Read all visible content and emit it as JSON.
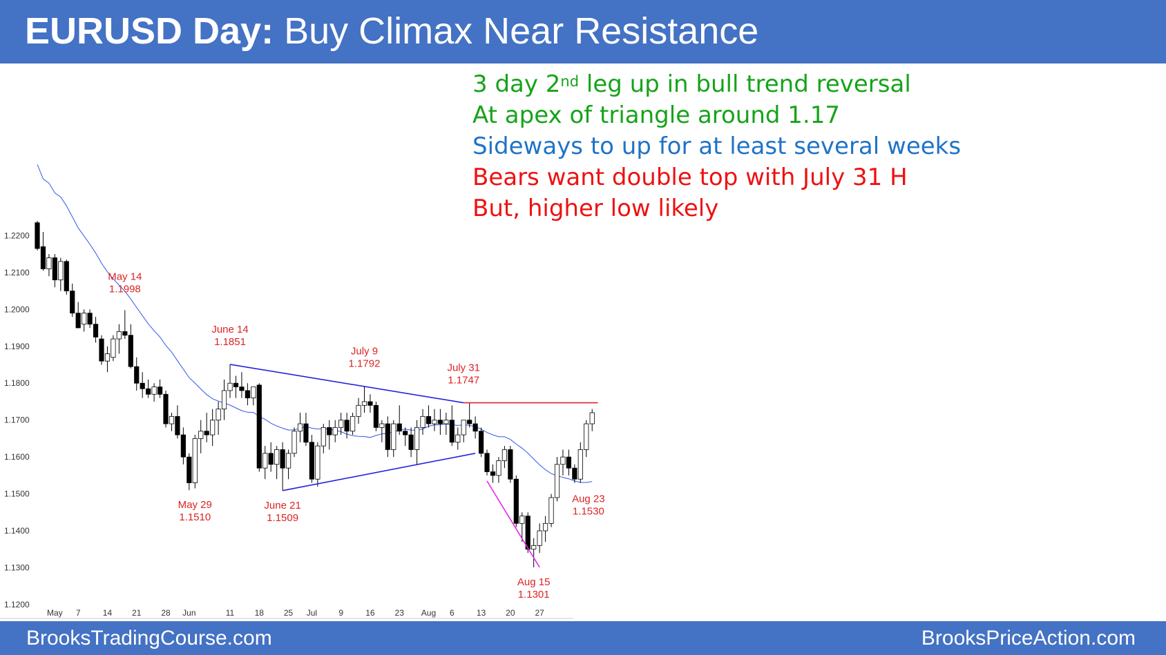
{
  "header": {
    "title_bold": "EURUSD Day:",
    "title_rest": " Buy Climax Near Resistance"
  },
  "notes": [
    {
      "text": "3 day 2",
      "sup": "nd",
      "after": " leg up in bull trend reversal",
      "color": "#16a31a"
    },
    {
      "text": "At apex of triangle around 1.17",
      "color": "#16a31a"
    },
    {
      "text": "Sideways to up for at least several weeks",
      "color": "#1f73c7"
    },
    {
      "text": "Bears want double top with July 31 H",
      "color": "#ee1111"
    },
    {
      "text": "But, higher low likely",
      "color": "#ee1111"
    }
  ],
  "footer": {
    "left": "BrooksTradingCourse.com",
    "right": "BrooksPriceAction.com"
  },
  "chart_data": {
    "type": "candlestick",
    "ylim": [
      1.117,
      1.224
    ],
    "y_ticks": [
      "1.2200",
      "1.2100",
      "1.2000",
      "1.1900",
      "1.1800",
      "1.1700",
      "1.1600",
      "1.1500",
      "1.1400",
      "1.1300",
      "1.1200"
    ],
    "x_ticks": [
      "May",
      "7",
      "14",
      "21",
      "28",
      "Jun",
      "11",
      "18",
      "25",
      "Jul",
      "9",
      "16",
      "23",
      "Aug",
      "6",
      "13",
      "20",
      "27"
    ],
    "candles": [
      [
        1.2235,
        1.224,
        1.216,
        1.2165
      ],
      [
        1.217,
        1.221,
        1.2105,
        1.211
      ],
      [
        1.211,
        1.215,
        1.209,
        1.214
      ],
      [
        1.214,
        1.215,
        1.206,
        1.208
      ],
      [
        1.208,
        1.214,
        1.205,
        1.213
      ],
      [
        1.213,
        1.2135,
        1.204,
        1.205
      ],
      [
        1.205,
        1.207,
        1.198,
        1.199
      ],
      [
        1.199,
        1.202,
        1.195,
        1.195
      ],
      [
        1.196,
        1.2,
        1.194,
        1.199
      ],
      [
        1.199,
        1.2,
        1.195,
        1.196
      ],
      [
        1.196,
        1.198,
        1.191,
        1.1925
      ],
      [
        1.192,
        1.193,
        1.185,
        1.186
      ],
      [
        1.186,
        1.19,
        1.183,
        1.188
      ],
      [
        1.187,
        1.193,
        1.186,
        1.192
      ],
      [
        1.192,
        1.196,
        1.188,
        1.194
      ],
      [
        1.194,
        1.1998,
        1.192,
        1.193
      ],
      [
        1.193,
        1.196,
        1.184,
        1.1845
      ],
      [
        1.1845,
        1.187,
        1.178,
        1.18
      ],
      [
        1.18,
        1.183,
        1.176,
        1.1785
      ],
      [
        1.1785,
        1.181,
        1.176,
        1.177
      ],
      [
        1.177,
        1.18,
        1.175,
        1.179
      ],
      [
        1.179,
        1.181,
        1.176,
        1.177
      ],
      [
        1.177,
        1.178,
        1.168,
        1.169
      ],
      [
        1.169,
        1.172,
        1.167,
        1.171
      ],
      [
        1.171,
        1.174,
        1.165,
        1.166
      ],
      [
        1.166,
        1.168,
        1.158,
        1.16
      ],
      [
        1.16,
        1.161,
        1.151,
        1.153
      ],
      [
        1.153,
        1.166,
        1.1515,
        1.165
      ],
      [
        1.165,
        1.17,
        1.161,
        1.167
      ],
      [
        1.167,
        1.172,
        1.164,
        1.166
      ],
      [
        1.166,
        1.173,
        1.163,
        1.17
      ],
      [
        1.17,
        1.175,
        1.166,
        1.173
      ],
      [
        1.173,
        1.181,
        1.17,
        1.178
      ],
      [
        1.178,
        1.1851,
        1.176,
        1.18
      ],
      [
        1.18,
        1.182,
        1.176,
        1.179
      ],
      [
        1.179,
        1.183,
        1.176,
        1.178
      ],
      [
        1.178,
        1.18,
        1.174,
        1.176
      ],
      [
        1.176,
        1.179,
        1.174,
        1.179
      ],
      [
        1.1795,
        1.18,
        1.156,
        1.157
      ],
      [
        1.157,
        1.163,
        1.154,
        1.161
      ],
      [
        1.161,
        1.164,
        1.156,
        1.158
      ],
      [
        1.158,
        1.163,
        1.154,
        1.162
      ],
      [
        1.162,
        1.164,
        1.1509,
        1.157
      ],
      [
        1.157,
        1.162,
        1.154,
        1.161
      ],
      [
        1.161,
        1.168,
        1.16,
        1.167
      ],
      [
        1.167,
        1.172,
        1.164,
        1.169
      ],
      [
        1.169,
        1.172,
        1.163,
        1.164
      ],
      [
        1.164,
        1.166,
        1.153,
        1.154
      ],
      [
        1.154,
        1.164,
        1.152,
        1.163
      ],
      [
        1.163,
        1.169,
        1.161,
        1.168
      ],
      [
        1.168,
        1.17,
        1.162,
        1.166
      ],
      [
        1.166,
        1.17,
        1.164,
        1.168
      ],
      [
        1.168,
        1.172,
        1.166,
        1.17
      ],
      [
        1.17,
        1.172,
        1.165,
        1.167
      ],
      [
        1.167,
        1.172,
        1.166,
        1.171
      ],
      [
        1.171,
        1.176,
        1.169,
        1.174
      ],
      [
        1.174,
        1.1792,
        1.172,
        1.175
      ],
      [
        1.175,
        1.177,
        1.172,
        1.174
      ],
      [
        1.174,
        1.175,
        1.167,
        1.168
      ],
      [
        1.168,
        1.17,
        1.164,
        1.169
      ],
      [
        1.169,
        1.171,
        1.16,
        1.162
      ],
      [
        1.162,
        1.17,
        1.16,
        1.169
      ],
      [
        1.169,
        1.174,
        1.166,
        1.167
      ],
      [
        1.167,
        1.168,
        1.163,
        1.166
      ],
      [
        1.166,
        1.168,
        1.16,
        1.162
      ],
      [
        1.162,
        1.17,
        1.158,
        1.168
      ],
      [
        1.168,
        1.173,
        1.166,
        1.171
      ],
      [
        1.171,
        1.174,
        1.168,
        1.169
      ],
      [
        1.169,
        1.173,
        1.167,
        1.17
      ],
      [
        1.17,
        1.173,
        1.166,
        1.169
      ],
      [
        1.169,
        1.172,
        1.166,
        1.17
      ],
      [
        1.17,
        1.174,
        1.163,
        1.164
      ],
      [
        1.164,
        1.168,
        1.162,
        1.166
      ],
      [
        1.166,
        1.17,
        1.164,
        1.17
      ],
      [
        1.17,
        1.1747,
        1.168,
        1.169
      ],
      [
        1.169,
        1.171,
        1.165,
        1.167
      ],
      [
        1.167,
        1.168,
        1.16,
        1.161
      ],
      [
        1.161,
        1.162,
        1.155,
        1.156
      ],
      [
        1.156,
        1.158,
        1.153,
        1.155
      ],
      [
        1.155,
        1.16,
        1.153,
        1.159
      ],
      [
        1.159,
        1.163,
        1.157,
        1.162
      ],
      [
        1.162,
        1.163,
        1.153,
        1.154
      ],
      [
        1.154,
        1.155,
        1.141,
        1.142
      ],
      [
        1.142,
        1.145,
        1.137,
        1.144
      ],
      [
        1.144,
        1.145,
        1.134,
        1.135
      ],
      [
        1.135,
        1.138,
        1.1301,
        1.136
      ],
      [
        1.136,
        1.142,
        1.134,
        1.14
      ],
      [
        1.14,
        1.144,
        1.137,
        1.142
      ],
      [
        1.142,
        1.15,
        1.141,
        1.149
      ],
      [
        1.149,
        1.16,
        1.148,
        1.158
      ],
      [
        1.158,
        1.162,
        1.155,
        1.16
      ],
      [
        1.16,
        1.162,
        1.155,
        1.157
      ],
      [
        1.157,
        1.158,
        1.153,
        1.154
      ],
      [
        1.154,
        1.164,
        1.153,
        1.162
      ],
      [
        1.162,
        1.17,
        1.16,
        1.169
      ],
      [
        1.169,
        1.173,
        1.167,
        1.172
      ]
    ],
    "annotations": [
      {
        "label": "May 14",
        "value": "1.1998"
      },
      {
        "label": "May 29",
        "value": "1.1510"
      },
      {
        "label": "June 14",
        "value": "1.1851"
      },
      {
        "label": "June 21",
        "value": "1.1509"
      },
      {
        "label": "July 9",
        "value": "1.1792"
      },
      {
        "label": "July 31",
        "value": "1.1747"
      },
      {
        "label": "Aug 23",
        "value": "1.1530"
      },
      {
        "label": "Aug 15",
        "value": "1.1301"
      }
    ],
    "trendlines": [
      {
        "name": "triangle-top",
        "color": "#2222dd",
        "from": [
          33,
          1.1851
        ],
        "to": [
          73,
          1.1747
        ]
      },
      {
        "name": "triangle-bottom",
        "color": "#2222dd",
        "from": [
          42,
          1.1509
        ],
        "to": [
          75,
          1.161
        ]
      },
      {
        "name": "resistance",
        "color": "#dd2222",
        "from": [
          73,
          1.1747
        ],
        "to": [
          96,
          1.1747
        ]
      },
      {
        "name": "wedge-line",
        "color": "#ee22ee",
        "from": [
          77,
          1.1535
        ],
        "to": [
          86,
          1.1301
        ]
      }
    ],
    "colors": {
      "annotation": "#dd2222",
      "ma": "#3355ee",
      "bull": "#ffffff",
      "bear": "#000000"
    }
  }
}
